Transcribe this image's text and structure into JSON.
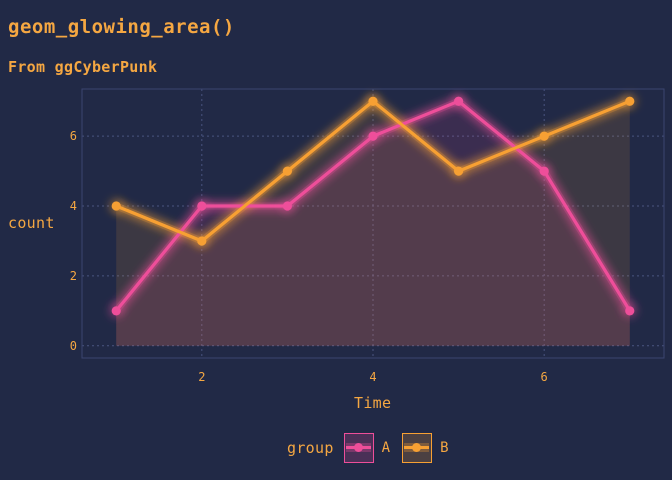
{
  "title": "geom_glowing_area()",
  "subtitle": "From ggCyberPunk",
  "legend": {
    "title": "group",
    "items": [
      {
        "label": "A",
        "color": "#ee4e9a"
      },
      {
        "label": "B",
        "color": "#f7a033"
      }
    ]
  },
  "chart_data": {
    "type": "area",
    "title": "geom_glowing_area()",
    "subtitle": "From ggCyberPunk",
    "xlabel": "Time",
    "ylabel": "count",
    "x": [
      1,
      2,
      3,
      4,
      5,
      6,
      7
    ],
    "xlim": [
      0.6,
      7.4
    ],
    "ylim": [
      -0.35,
      7.35
    ],
    "xticks": [
      2,
      4,
      6
    ],
    "yticks": [
      0,
      2,
      4,
      6
    ],
    "grid": true,
    "legend_position": "bottom",
    "series": [
      {
        "name": "A",
        "values": [
          1,
          4,
          4,
          6,
          7,
          5,
          1
        ],
        "color": "#ee4e9a"
      },
      {
        "name": "B",
        "values": [
          4,
          3,
          5,
          7,
          5,
          6,
          7
        ],
        "color": "#f7a033"
      }
    ]
  }
}
